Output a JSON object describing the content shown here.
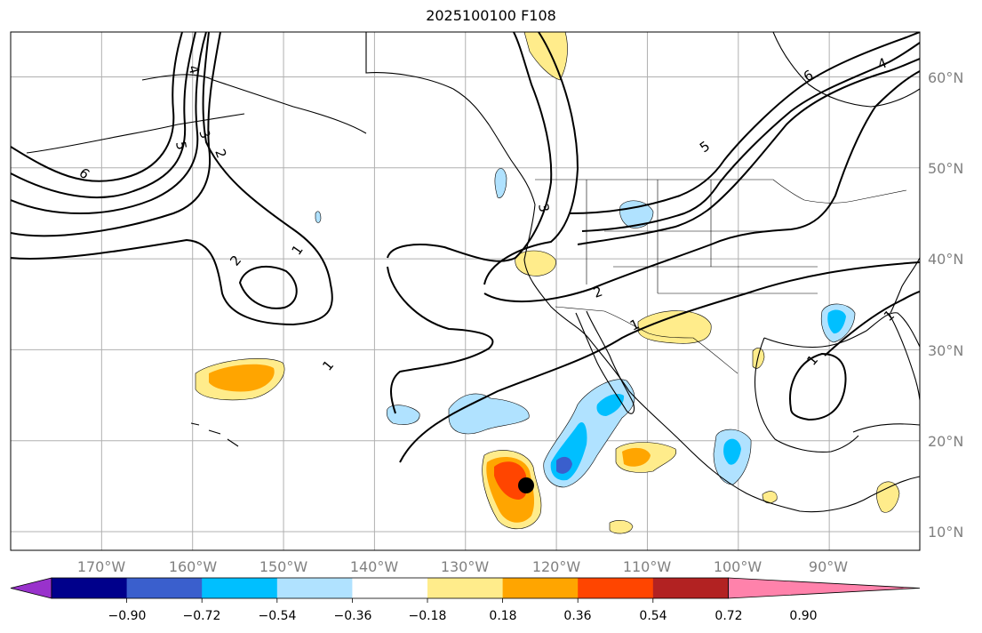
{
  "title": "2025100100 F108",
  "map": {
    "lon_range": [
      -180,
      -80
    ],
    "lat_range": [
      8,
      65
    ],
    "lat_labels": [
      "10°N",
      "20°N",
      "30°N",
      "40°N",
      "50°N",
      "60°N"
    ],
    "lon_labels": [
      "170°W",
      "160°W",
      "150°W",
      "140°W",
      "130°W",
      "120°W",
      "110°W",
      "100°W",
      "90°W"
    ],
    "contour_labels": [
      "1",
      "2",
      "3",
      "4",
      "5",
      "6"
    ],
    "marker_color": "#000000"
  },
  "colorbar": {
    "colors": [
      "#9932cc",
      "#00008b",
      "#3a5fcd",
      "#00bfff",
      "#b0e2ff",
      "#ffffff",
      "#ffec8b",
      "#ffa500",
      "#ff4500",
      "#b22222",
      "#ff82ab"
    ],
    "tick_labels": [
      "−0.90",
      "−0.72",
      "−0.54",
      "−0.36",
      "−0.18",
      "0.18",
      "0.36",
      "0.54",
      "0.72",
      "0.90"
    ]
  }
}
